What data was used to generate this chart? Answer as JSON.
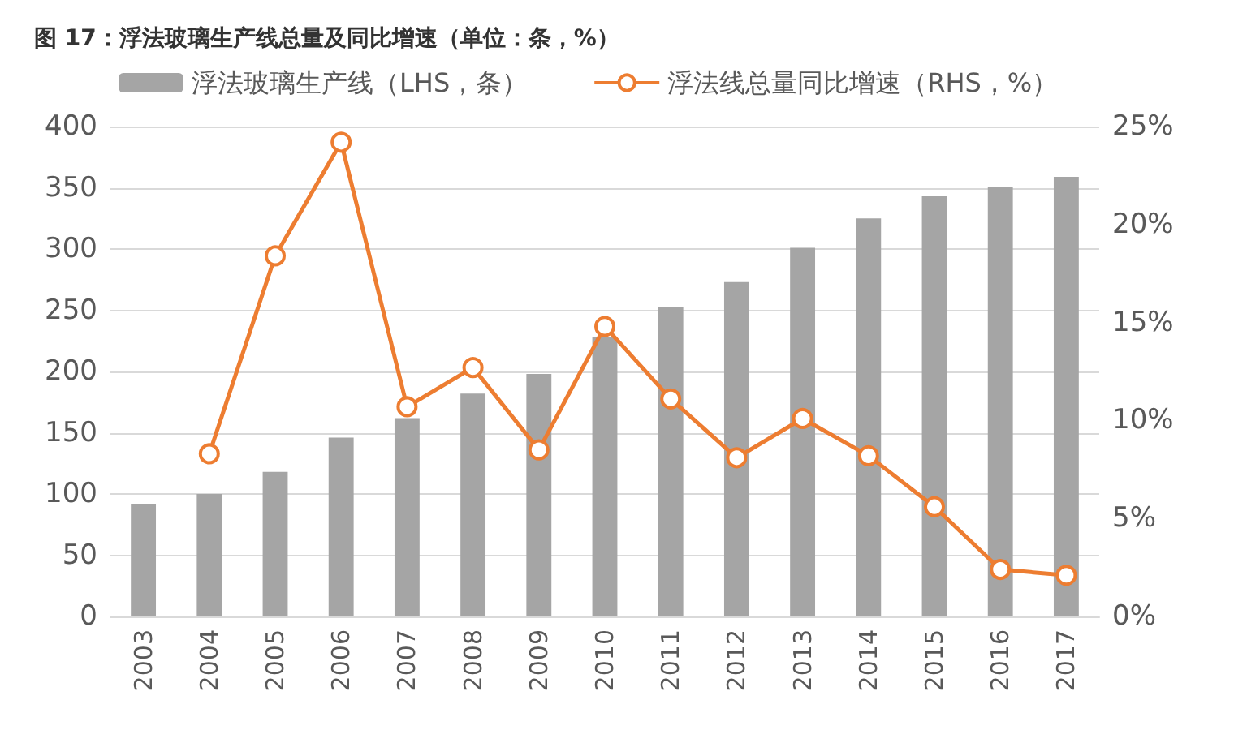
{
  "chart_data": {
    "type": "bar",
    "title": "图 17：浮法玻璃生产线总量及同比增速（单位：条，%）",
    "categories": [
      "2003",
      "2004",
      "2005",
      "2006",
      "2007",
      "2008",
      "2009",
      "2010",
      "2011",
      "2012",
      "2013",
      "2014",
      "2015",
      "2016",
      "2017"
    ],
    "series": [
      {
        "name": "浮法玻璃生产线（LHS，条）",
        "color": "#a5a5a5",
        "values": [
          92,
          100,
          118,
          146,
          162,
          182,
          198,
          228,
          253,
          273,
          301,
          325,
          343,
          351,
          359
        ]
      },
      {
        "name": "浮法线总量同比增速（RHS，%）",
        "color": "#ed7d31",
        "type": "line",
        "axis": "y2",
        "values": [
          null,
          8.3,
          18.4,
          24.2,
          10.7,
          12.7,
          8.5,
          14.8,
          11.1,
          8.1,
          10.1,
          8.2,
          5.6,
          2.4,
          2.1
        ]
      }
    ],
    "ylim": [
      0,
      400
    ],
    "yticks": [
      0,
      50,
      100,
      150,
      200,
      250,
      300,
      350,
      400
    ],
    "y2lim": [
      0,
      25
    ],
    "y2ticks": [
      {
        "value": 0,
        "label": "0%"
      },
      {
        "value": 5,
        "label": "5%"
      },
      {
        "value": 10,
        "label": "10%"
      },
      {
        "value": 15,
        "label": "15%"
      },
      {
        "value": 20,
        "label": "20%"
      },
      {
        "value": 25,
        "label": "25%"
      }
    ],
    "grid": "y",
    "legend": "top",
    "marker": "circle"
  }
}
